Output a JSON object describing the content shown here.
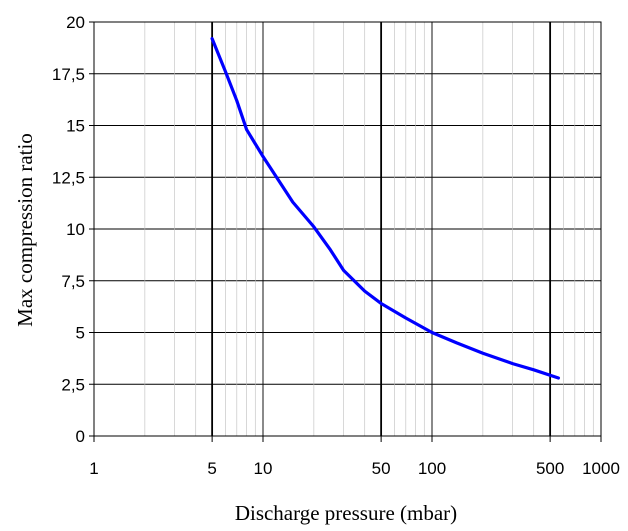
{
  "chart_data": {
    "type": "line",
    "title": "",
    "xlabel": "Discharge pressure (mbar)",
    "ylabel": "Max compression ratio",
    "x_scale": "log",
    "xlim": [
      1,
      1000
    ],
    "ylim": [
      0,
      20
    ],
    "grid": true,
    "legend": "none",
    "x_ticks": [
      {
        "value": 1,
        "label": "1"
      },
      {
        "value": 5,
        "label": "5"
      },
      {
        "value": 10,
        "label": "10"
      },
      {
        "value": 50,
        "label": "50"
      },
      {
        "value": 100,
        "label": "100"
      },
      {
        "value": 500,
        "label": "500"
      },
      {
        "value": 1000,
        "label": "1000"
      }
    ],
    "y_ticks": [
      {
        "value": 0,
        "label": "0"
      },
      {
        "value": 2.5,
        "label": "2,5"
      },
      {
        "value": 5,
        "label": "5"
      },
      {
        "value": 7.5,
        "label": "7,5"
      },
      {
        "value": 10,
        "label": "10"
      },
      {
        "value": 12.5,
        "label": "12,5"
      },
      {
        "value": 15,
        "label": "15"
      },
      {
        "value": 17.5,
        "label": "17,5"
      },
      {
        "value": 20,
        "label": "20"
      }
    ],
    "major_x_lines": [
      5,
      50,
      500
    ],
    "series": [
      {
        "color": "#0000ff",
        "x": [
          5,
          6,
          7,
          8,
          10,
          15,
          20,
          25,
          30,
          40,
          50,
          70,
          100,
          140,
          200,
          300,
          400,
          560
        ],
        "y": [
          19.2,
          17.6,
          16.2,
          14.8,
          13.5,
          11.3,
          10.1,
          9.0,
          8.0,
          7.0,
          6.4,
          5.7,
          5.0,
          4.5,
          4.0,
          3.5,
          3.2,
          2.8
        ]
      }
    ]
  }
}
